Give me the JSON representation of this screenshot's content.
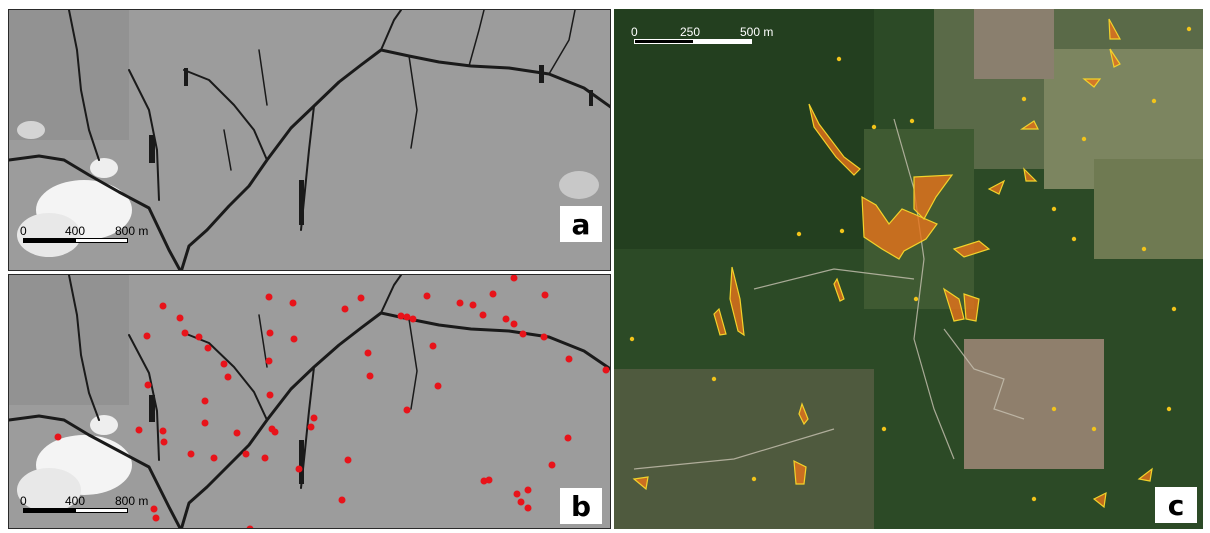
{
  "panels": {
    "a": {
      "letter": "a",
      "scale_bar": {
        "labels": [
          "0",
          "400",
          "800 m"
        ],
        "colors": [
          "#000000",
          "#ffffff"
        ]
      }
    },
    "b": {
      "letter": "b",
      "scale_bar": {
        "labels": [
          "0",
          "400",
          "800 m"
        ],
        "colors": [
          "#000000",
          "#ffffff"
        ]
      },
      "points_color": "#e8131a"
    },
    "c": {
      "letter": "c",
      "scale_bar": {
        "labels": [
          "0",
          "250",
          "500 m"
        ],
        "colors": [
          "#000000",
          "#ffffff"
        ]
      },
      "polygon_fill": "#e8731a",
      "polygon_outline": "#f2d22a"
    }
  }
}
